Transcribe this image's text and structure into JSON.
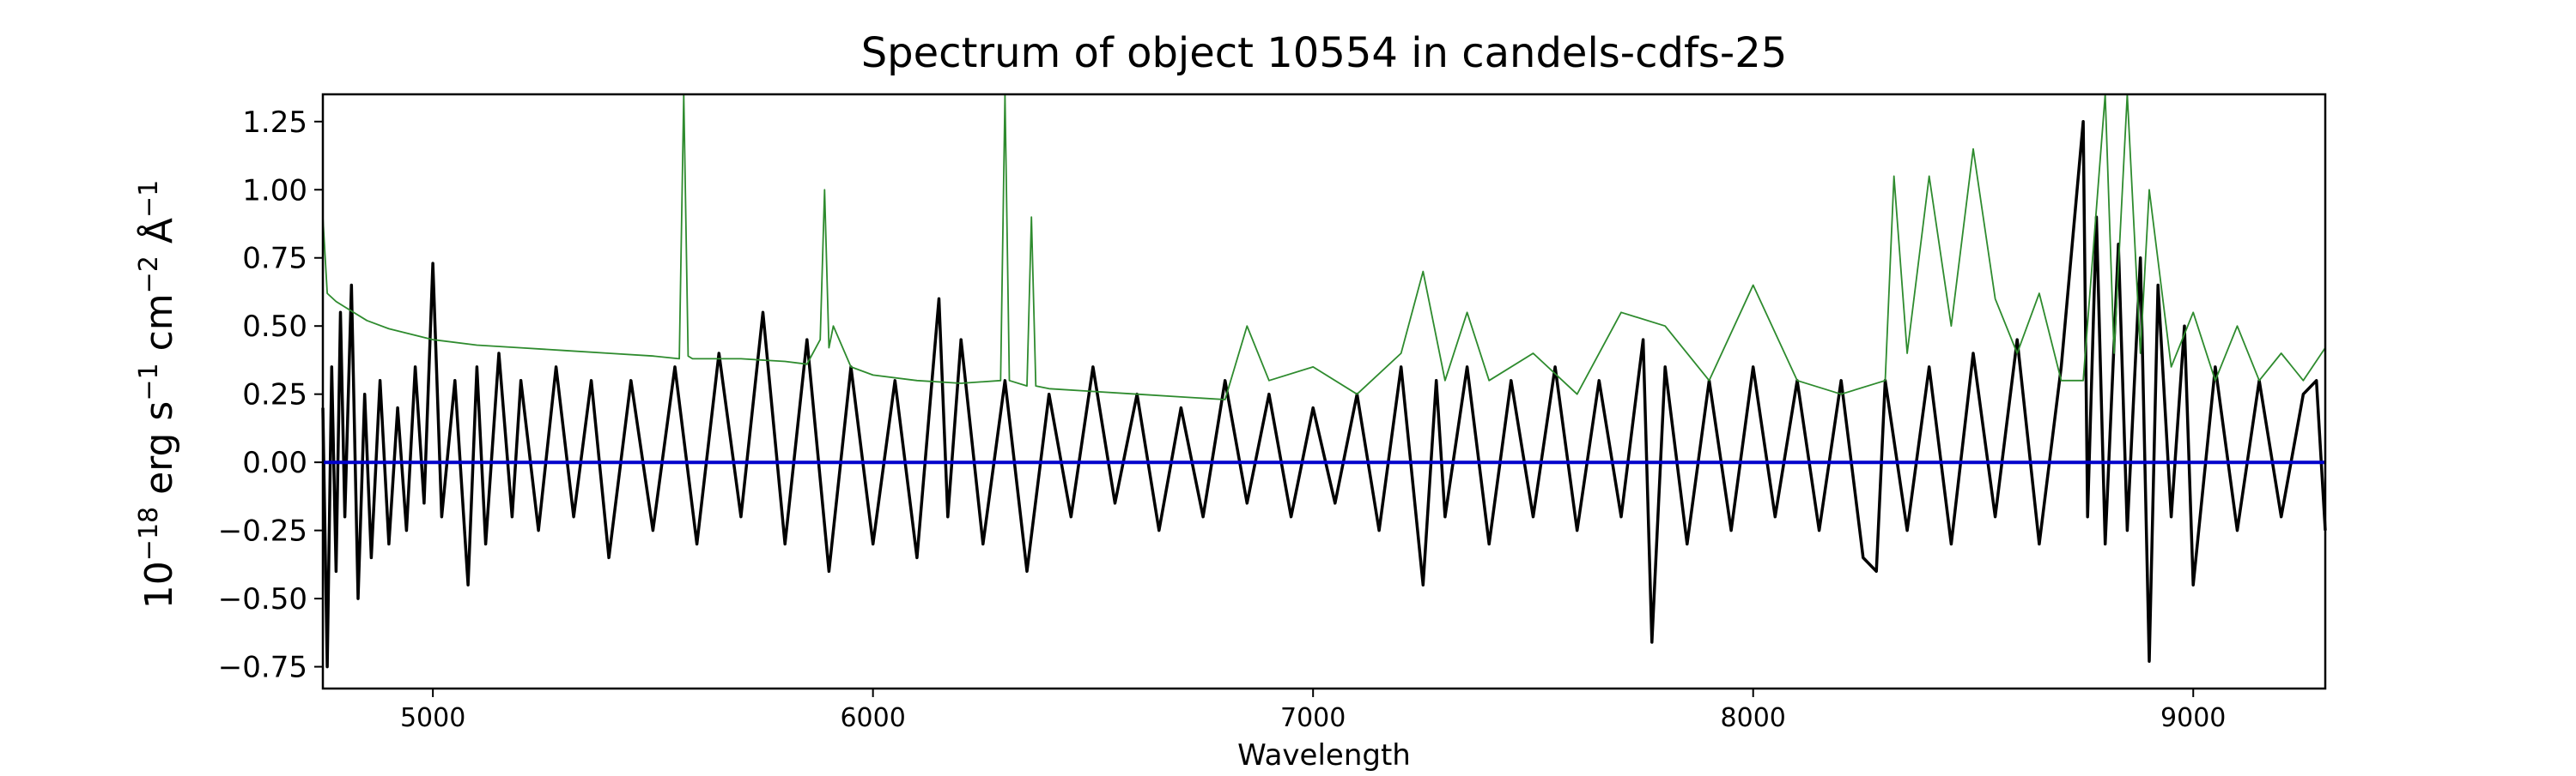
{
  "chart_data": {
    "type": "line",
    "title": "Spectrum of object 10554 in candels-cdfs-25",
    "xlabel": "Wavelength",
    "ylabel": {
      "base": "10",
      "exp": "−18",
      "unit1": " erg s",
      "exp1": "−1",
      "unit2": " cm",
      "exp2": "−2",
      "unit3": " Å",
      "exp3": "−1"
    },
    "xlim": [
      4750,
      9300
    ],
    "ylim": [
      -0.83,
      1.35
    ],
    "x_ticks": [
      5000,
      6000,
      7000,
      8000,
      9000
    ],
    "x_tick_labels": [
      "5000",
      "6000",
      "7000",
      "8000",
      "9000"
    ],
    "y_ticks": [
      -0.75,
      -0.5,
      -0.25,
      0.0,
      0.25,
      0.5,
      0.75,
      1.0,
      1.25
    ],
    "y_tick_labels": [
      "−0.75",
      "−0.50",
      "−0.25",
      "0.00",
      "0.25",
      "0.50",
      "0.75",
      "1.00",
      "1.25"
    ],
    "grid": false,
    "legend": "none",
    "series": [
      {
        "color": "#000000",
        "x": [
          4750,
          4760,
          4770,
          4780,
          4790,
          4800,
          4815,
          4830,
          4845,
          4860,
          4880,
          4900,
          4920,
          4940,
          4960,
          4980,
          5000,
          5020,
          5050,
          5080,
          5100,
          5120,
          5150,
          5180,
          5200,
          5240,
          5280,
          5320,
          5360,
          5400,
          5450,
          5500,
          5550,
          5600,
          5650,
          5700,
          5750,
          5800,
          5850,
          5900,
          5950,
          6000,
          6050,
          6100,
          6150,
          6170,
          6200,
          6250,
          6300,
          6350,
          6400,
          6450,
          6500,
          6550,
          6600,
          6650,
          6700,
          6750,
          6800,
          6850,
          6900,
          6950,
          7000,
          7050,
          7100,
          7150,
          7200,
          7250,
          7280,
          7300,
          7350,
          7400,
          7450,
          7500,
          7550,
          7600,
          7650,
          7700,
          7750,
          7770,
          7800,
          7850,
          7900,
          7950,
          8000,
          8050,
          8100,
          8150,
          8200,
          8250,
          8280,
          8300,
          8350,
          8400,
          8450,
          8500,
          8550,
          8600,
          8650,
          8700,
          8750,
          8760,
          8780,
          8800,
          8830,
          8850,
          8880,
          8900,
          8920,
          8950,
          8980,
          9000,
          9050,
          9100,
          9150,
          9200,
          9250,
          9280,
          9300
        ],
        "y": [
          0.2,
          -0.75,
          0.35,
          -0.4,
          0.55,
          -0.2,
          0.65,
          -0.5,
          0.25,
          -0.35,
          0.3,
          -0.3,
          0.2,
          -0.25,
          0.35,
          -0.15,
          0.73,
          -0.2,
          0.3,
          -0.45,
          0.35,
          -0.3,
          0.4,
          -0.2,
          0.3,
          -0.25,
          0.35,
          -0.2,
          0.3,
          -0.35,
          0.3,
          -0.25,
          0.35,
          -0.3,
          0.4,
          -0.2,
          0.55,
          -0.3,
          0.45,
          -0.4,
          0.35,
          -0.3,
          0.3,
          -0.35,
          0.6,
          -0.2,
          0.45,
          -0.3,
          0.3,
          -0.4,
          0.25,
          -0.2,
          0.35,
          -0.15,
          0.25,
          -0.25,
          0.2,
          -0.2,
          0.3,
          -0.15,
          0.25,
          -0.2,
          0.2,
          -0.15,
          0.25,
          -0.25,
          0.35,
          -0.45,
          0.3,
          -0.2,
          0.35,
          -0.3,
          0.3,
          -0.2,
          0.35,
          -0.25,
          0.3,
          -0.2,
          0.45,
          -0.66,
          0.35,
          -0.3,
          0.3,
          -0.25,
          0.35,
          -0.2,
          0.3,
          -0.25,
          0.3,
          -0.35,
          -0.4,
          0.3,
          -0.25,
          0.35,
          -0.3,
          0.4,
          -0.2,
          0.45,
          -0.3,
          0.35,
          1.25,
          -0.2,
          0.9,
          -0.3,
          0.8,
          -0.25,
          0.75,
          -0.73,
          0.65,
          -0.2,
          0.5,
          -0.45,
          0.35,
          -0.25,
          0.3,
          -0.2,
          0.25,
          0.3,
          -0.25
        ]
      },
      {
        "color": "#2e8b2e",
        "x": [
          4750,
          4760,
          4780,
          4800,
          4850,
          4900,
          4950,
          5000,
          5100,
          5200,
          5300,
          5400,
          5500,
          5560,
          5570,
          5580,
          5590,
          5600,
          5700,
          5800,
          5850,
          5880,
          5890,
          5900,
          5910,
          5950,
          6000,
          6100,
          6200,
          6290,
          6300,
          6310,
          6350,
          6360,
          6370,
          6400,
          6500,
          6600,
          6700,
          6800,
          6850,
          6900,
          7000,
          7100,
          7200,
          7250,
          7300,
          7350,
          7400,
          7500,
          7600,
          7700,
          7800,
          7900,
          8000,
          8100,
          8200,
          8300,
          8320,
          8350,
          8400,
          8450,
          8500,
          8550,
          8600,
          8650,
          8700,
          8750,
          8800,
          8820,
          8850,
          8880,
          8900,
          8950,
          9000,
          9050,
          9100,
          9150,
          9200,
          9250,
          9300
        ],
        "y": [
          0.9,
          0.62,
          0.59,
          0.57,
          0.52,
          0.49,
          0.47,
          0.45,
          0.43,
          0.42,
          0.41,
          0.4,
          0.39,
          0.38,
          1.35,
          0.39,
          0.38,
          0.38,
          0.38,
          0.37,
          0.36,
          0.45,
          1.0,
          0.42,
          0.5,
          0.35,
          0.32,
          0.3,
          0.29,
          0.3,
          1.35,
          0.3,
          0.28,
          0.9,
          0.28,
          0.27,
          0.26,
          0.25,
          0.24,
          0.23,
          0.5,
          0.3,
          0.35,
          0.25,
          0.4,
          0.7,
          0.3,
          0.55,
          0.3,
          0.4,
          0.25,
          0.55,
          0.5,
          0.3,
          0.65,
          0.3,
          0.25,
          0.3,
          1.05,
          0.4,
          1.05,
          0.5,
          1.15,
          0.6,
          0.4,
          0.62,
          0.3,
          0.3,
          1.35,
          0.4,
          1.35,
          0.4,
          1.0,
          0.35,
          0.55,
          0.3,
          0.5,
          0.3,
          0.4,
          0.3,
          0.42
        ]
      },
      {
        "color": "#0000cc",
        "x": [
          4750,
          9300
        ],
        "y": [
          0.0,
          0.0
        ]
      }
    ]
  }
}
